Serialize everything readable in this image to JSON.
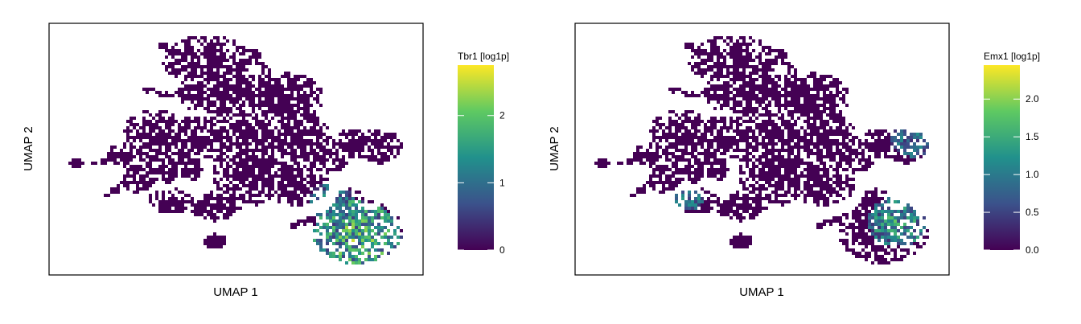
{
  "chart_data": [
    {
      "type": "heatmap",
      "subtype": "hexbin-umap",
      "xlabel": "UMAP 1",
      "ylabel": "UMAP 2",
      "legend_title": "Tbr1 [log1p]",
      "legend_placement": "right",
      "color_scale": "viridis",
      "value_range": [
        0,
        2.75
      ],
      "ticks": [
        0,
        1,
        2
      ],
      "tick_labels": [
        "0",
        "1",
        "2"
      ],
      "grid": false,
      "colors": [
        "#440154",
        "#3b528b",
        "#21918c",
        "#5ec962",
        "#fde725"
      ],
      "hotspots": [
        {
          "x": 0.82,
          "y": 0.15,
          "r": 0.12,
          "v": 0.55
        },
        {
          "x": 0.75,
          "y": 0.3,
          "r": 0.06,
          "v": 0.35
        }
      ]
    },
    {
      "type": "heatmap",
      "subtype": "hexbin-umap",
      "xlabel": "UMAP 1",
      "ylabel": "UMAP 2",
      "legend_title": "Emx1 [log1p]",
      "legend_placement": "right",
      "color_scale": "viridis",
      "value_range": [
        0,
        2.45
      ],
      "ticks": [
        0,
        0.5,
        1,
        1.5,
        2
      ],
      "tick_labels": [
        "0.0",
        "0.5",
        "1.0",
        "1.5",
        "2.0"
      ],
      "grid": false,
      "colors": [
        "#440154",
        "#3b528b",
        "#21918c",
        "#5ec962",
        "#fde725"
      ],
      "hotspots": [
        {
          "x": 0.86,
          "y": 0.22,
          "r": 0.08,
          "v": 0.45
        },
        {
          "x": 0.9,
          "y": 0.55,
          "r": 0.06,
          "v": 0.35
        },
        {
          "x": 0.3,
          "y": 0.31,
          "r": 0.04,
          "v": 0.4
        }
      ]
    }
  ]
}
